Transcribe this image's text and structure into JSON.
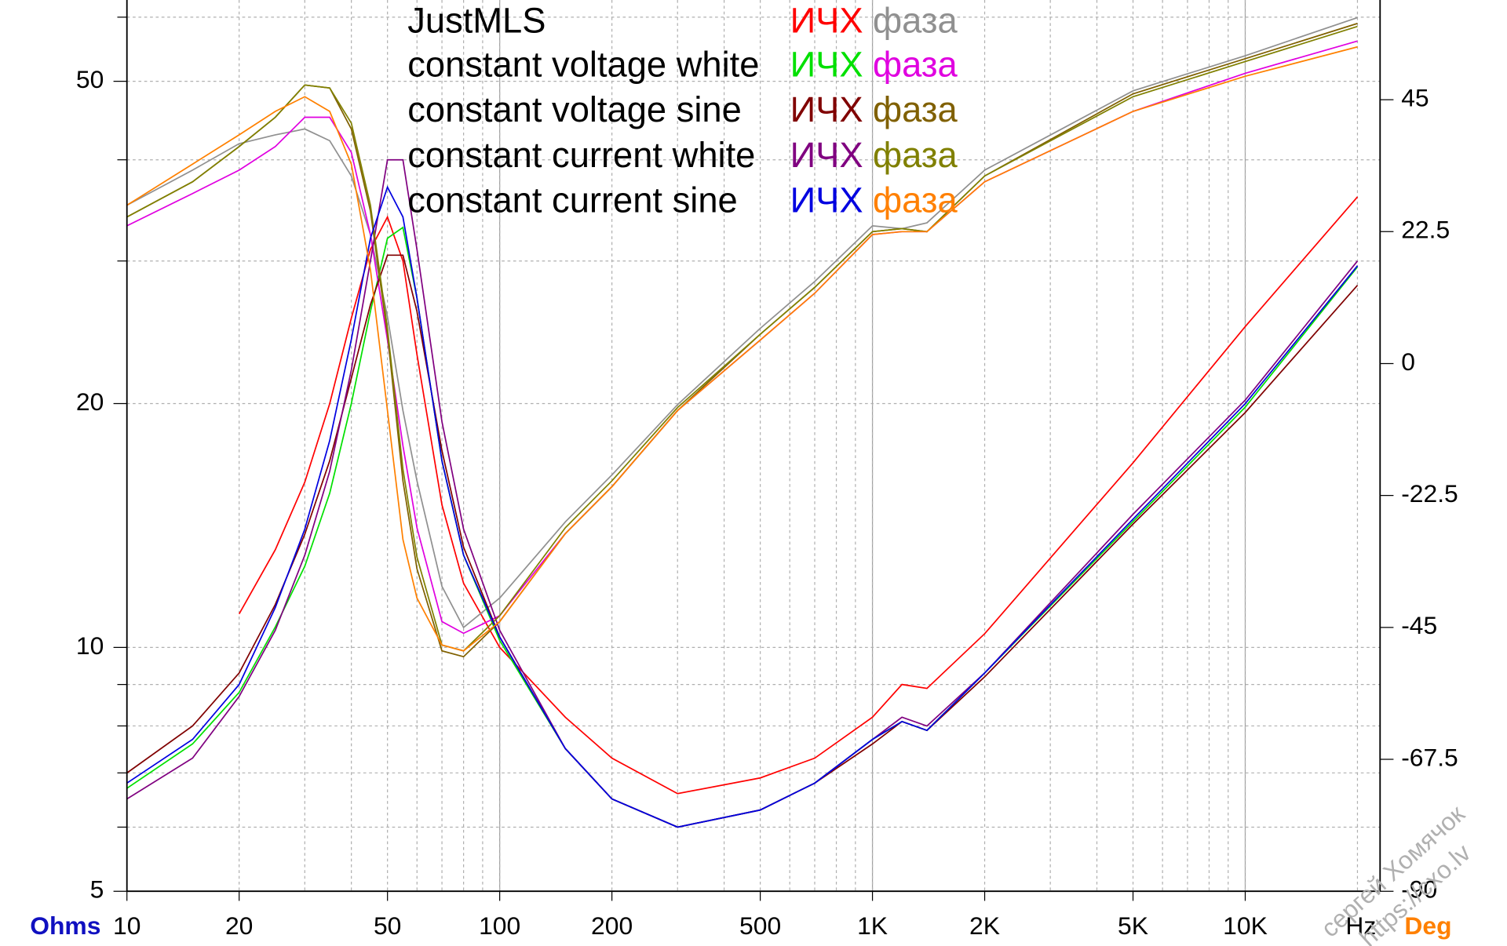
{
  "chart_data": {
    "type": "line",
    "x_label": "Hz",
    "y_label": "Ohms",
    "y2_label": "Deg",
    "annotations": [
      "сергей Хомячок",
      "https://cxo.lv"
    ],
    "xscale": "log",
    "yscale": "log",
    "xlim": [
      10,
      23000
    ],
    "ylim": [
      5,
      63
    ],
    "y2lim": [
      -90,
      62
    ],
    "xticks": [
      10,
      20,
      50,
      100,
      200,
      500,
      {
        "value": 1000,
        "label": "1K"
      },
      {
        "value": 2000,
        "label": "2K"
      },
      {
        "value": 5000,
        "label": "5K"
      },
      {
        "value": 10000,
        "label": "10K"
      }
    ],
    "xgrid": [
      30,
      40,
      60,
      70,
      80,
      90,
      300,
      400,
      600,
      700,
      800,
      900,
      3000,
      4000,
      6000,
      7000,
      8000,
      9000,
      20000
    ],
    "xgrid_major": [
      100,
      1000,
      10000
    ],
    "yticks": [
      5,
      10,
      20,
      50
    ],
    "ygrid": [
      6,
      7,
      8,
      9,
      30,
      40,
      60
    ],
    "y2ticks": [
      -90,
      -67.5,
      -45,
      -22.5,
      0,
      22.5,
      45
    ],
    "grid": true,
    "x": [
      10,
      15,
      20,
      25,
      30,
      35,
      40,
      45,
      50,
      55,
      60,
      70,
      80,
      100,
      150,
      200,
      300,
      500,
      700,
      1000,
      1200,
      1400,
      2000,
      5000,
      10000,
      20000
    ],
    "series": [
      {
        "group": "JustMLS",
        "name": "ИЧХ",
        "color": "#ff0000",
        "axis": "y",
        "values": [
          null,
          null,
          11,
          13.2,
          16,
          20,
          25.5,
          31,
          34,
          30,
          23,
          15,
          12,
          10,
          8.2,
          7.3,
          6.6,
          6.9,
          7.3,
          8.2,
          9,
          8.9,
          10.4,
          16.9,
          24.9,
          36
        ]
      },
      {
        "group": "JustMLS",
        "name": "фаза",
        "color": "#909090",
        "axis": "y2",
        "values": [
          27,
          33,
          37.5,
          39,
          40,
          38,
          32,
          22,
          8,
          -8,
          -20,
          -38,
          -45,
          -40,
          -27,
          -19,
          -7,
          6,
          14,
          23.5,
          23,
          24,
          33,
          46.5,
          52.5,
          59
        ]
      },
      {
        "group": "constant voltage white",
        "name": "ИЧХ",
        "color": "#00e000",
        "axis": "y",
        "values": [
          6.7,
          7.6,
          8.8,
          10.6,
          12.6,
          15.5,
          20,
          26,
          32,
          33,
          27,
          17,
          13,
          10.2,
          7.5,
          6.5,
          6,
          6.3,
          6.8,
          7.7,
          8.1,
          7.9,
          9.3,
          14.3,
          19.8,
          29.5
        ]
      },
      {
        "group": "constant voltage white",
        "name": "фаза",
        "color": "#e000e0",
        "axis": "y2",
        "values": [
          23.5,
          29,
          33,
          37,
          42,
          42,
          36,
          22,
          4,
          -14,
          -28,
          -44,
          -46,
          -43,
          -29,
          -21,
          -8,
          4,
          12,
          22,
          22.5,
          22.5,
          31,
          43,
          49.5,
          55
        ]
      },
      {
        "group": "constant voltage sine",
        "name": "ИЧХ",
        "color": "#800000",
        "axis": "y",
        "values": [
          7,
          8,
          9.3,
          11.3,
          13.8,
          17,
          21.5,
          26.5,
          30.5,
          30.5,
          26,
          17.5,
          13.3,
          10.3,
          7.5,
          6.5,
          6,
          6.3,
          6.8,
          7.6,
          8.1,
          7.9,
          9.2,
          14.2,
          19.5,
          28
        ]
      },
      {
        "group": "constant voltage sine",
        "name": "фаза",
        "color": "#806000",
        "axis": "y2",
        "values": [
          25,
          31,
          37,
          42,
          47.5,
          47,
          40,
          26,
          5,
          -20,
          -35,
          -49,
          -50,
          -44,
          -29,
          -21,
          -8,
          5,
          13,
          22.5,
          23,
          22.5,
          32,
          46,
          52,
          58
        ]
      },
      {
        "group": "constant current white",
        "name": "ИЧХ",
        "color": "#800080",
        "axis": "y",
        "values": [
          6.5,
          7.3,
          8.7,
          10.5,
          13,
          16.5,
          22,
          30,
          40,
          40,
          31,
          19,
          14,
          10.5,
          7.5,
          6.5,
          6,
          6.3,
          6.8,
          7.7,
          8.2,
          8,
          9.3,
          14.6,
          20.2,
          30
        ]
      },
      {
        "group": "constant current white",
        "name": "фаза",
        "color": "#808000",
        "axis": "y2",
        "values": [
          25,
          31,
          37,
          42,
          47.5,
          47,
          41,
          27,
          6,
          -18,
          -33,
          -48,
          -49,
          -43,
          -28,
          -20,
          -7.5,
          5,
          13,
          22.5,
          23,
          22.5,
          32,
          45.5,
          51.5,
          57.5
        ]
      },
      {
        "group": "constant current sine",
        "name": "ИЧХ",
        "color": "#0000e0",
        "axis": "y",
        "values": [
          6.8,
          7.7,
          9,
          11.2,
          14,
          18,
          24,
          32,
          37,
          34,
          27,
          17,
          13,
          10.3,
          7.5,
          6.5,
          6,
          6.3,
          6.8,
          7.7,
          8.1,
          7.9,
          9.3,
          14.4,
          20,
          29.6
        ]
      },
      {
        "group": "constant current sine",
        "name": "фаза",
        "color": "#ff8000",
        "axis": "y2",
        "values": [
          27,
          34,
          39,
          43,
          45.5,
          43,
          34,
          16,
          -8,
          -30,
          -40,
          -48,
          -49,
          -44,
          -29,
          -21,
          -8,
          4,
          12,
          22,
          22.5,
          22.5,
          31,
          43,
          49,
          54
        ]
      }
    ]
  }
}
